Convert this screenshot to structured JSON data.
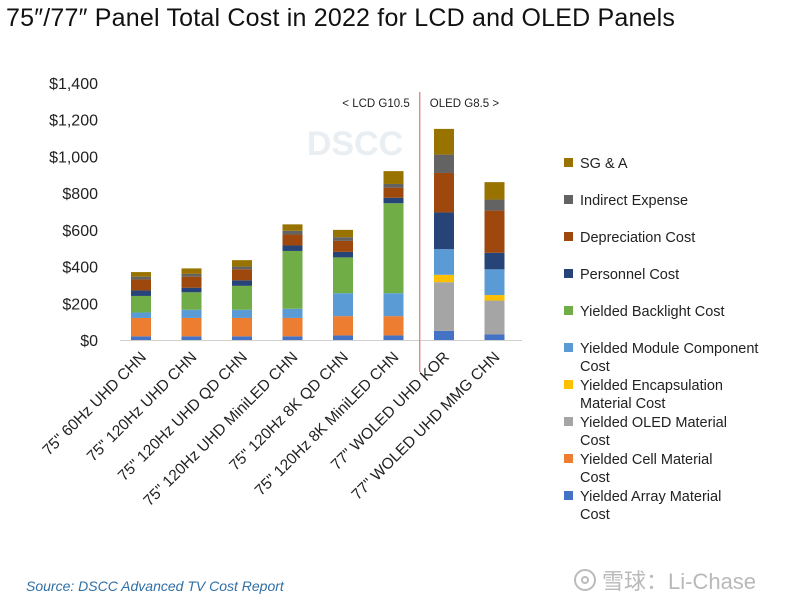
{
  "title": "75″/77″ Panel Total Cost in 2022 for LCD and OLED Panels",
  "source": "Source: DSCC Advanced TV Cost Report",
  "watermark_text": "雪球：Li-Chase",
  "brand_mark": "DSCC",
  "chart_data": {
    "type": "bar",
    "stacked": true,
    "ylabel": "",
    "xlabel": "",
    "ylim": [
      0,
      1400
    ],
    "yticks": [
      0,
      200,
      400,
      600,
      800,
      1000,
      1200,
      1400
    ],
    "ytick_labels": [
      "$0",
      "$200",
      "$400",
      "$600",
      "$800",
      "$1,000",
      "$1,200",
      "$1,400"
    ],
    "grid": false,
    "legend_position": "right",
    "categories": [
      "75\" 60Hz UHD CHN",
      "75\" 120Hz UHD CHN",
      "75\" 120Hz UHD QD CHN",
      "75\" 120Hz UHD MiniLED CHN",
      "75\" 120Hz 8K QD CHN",
      "75\" 120Hz 8K MiniLED CHN",
      "77\" WOLED UHD KOR",
      "77\" WOLED UHD MMG CHN"
    ],
    "region_labels": [
      "< LCD G10.5",
      "OLED G8.5 >"
    ],
    "series": [
      {
        "name": "Yielded Array Material Cost",
        "color": "#4472c4",
        "values": [
          20,
          20,
          20,
          20,
          25,
          25,
          50,
          30
        ]
      },
      {
        "name": "Yielded Cell Material Cost",
        "color": "#ed7d31",
        "values": [
          100,
          100,
          100,
          100,
          105,
          105,
          0,
          0
        ]
      },
      {
        "name": "Yielded OLED Material Cost",
        "color": "#a5a5a5",
        "values": [
          0,
          0,
          0,
          0,
          0,
          0,
          265,
          185
        ]
      },
      {
        "name": "Yielded Encapsulation Material Cost",
        "color": "#ffc000",
        "values": [
          0,
          0,
          0,
          0,
          0,
          0,
          40,
          30
        ]
      },
      {
        "name": "Yielded Module Component Cost",
        "color": "#5b9bd5",
        "values": [
          30,
          45,
          45,
          50,
          125,
          125,
          140,
          140
        ]
      },
      {
        "name": "Yielded Backlight Cost",
        "color": "#70ad47",
        "values": [
          90,
          95,
          130,
          315,
          195,
          490,
          0,
          0
        ]
      },
      {
        "name": "Personnel Cost",
        "color": "#264478",
        "values": [
          30,
          25,
          30,
          30,
          30,
          30,
          200,
          90
        ]
      },
      {
        "name": "Depreciation Cost",
        "color": "#9e480e",
        "values": [
          60,
          60,
          60,
          60,
          60,
          55,
          215,
          230
        ]
      },
      {
        "name": "Indirect Expense",
        "color": "#636363",
        "values": [
          15,
          15,
          15,
          20,
          20,
          20,
          100,
          60
        ]
      },
      {
        "name": "SG & A",
        "color": "#997300",
        "values": [
          25,
          30,
          35,
          35,
          40,
          70,
          140,
          95
        ]
      }
    ],
    "totals_approx": [
      370,
      390,
      435,
      630,
      600,
      920,
      1150,
      860
    ]
  }
}
